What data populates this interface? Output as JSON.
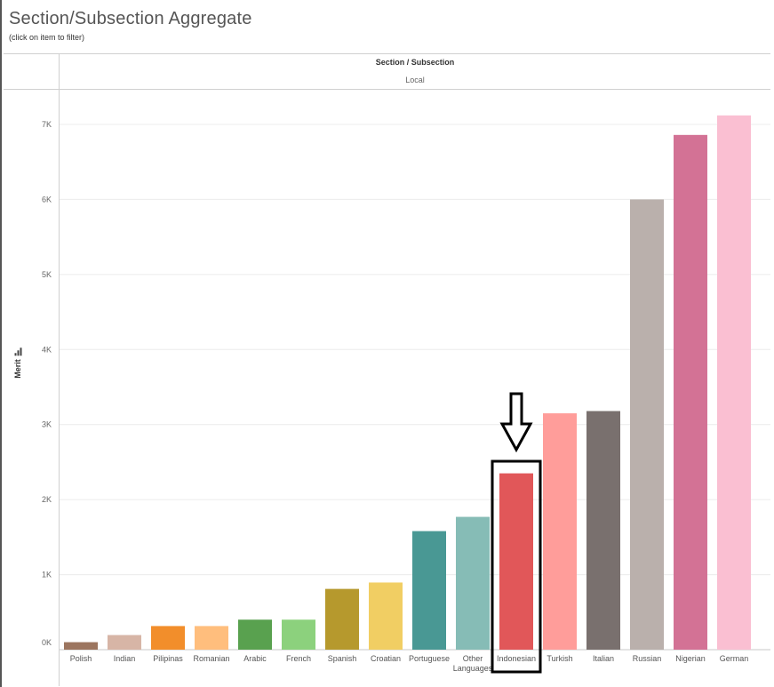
{
  "page": {
    "title": "Section/Subsection Aggregate",
    "subtitle": "(click on item to filter)",
    "header_label": "Section / Subsection",
    "header_value": "Local"
  },
  "chart_data": {
    "type": "bar",
    "title": "Section/Subsection Aggregate",
    "xlabel": "",
    "ylabel": "Merit",
    "ylim": [
      0,
      7500
    ],
    "grid": true,
    "y_ticks": [
      0,
      1000,
      2000,
      3000,
      4000,
      5000,
      6000,
      7000
    ],
    "y_tick_labels": [
      "0K",
      "1K",
      "2K",
      "3K",
      "4K",
      "5K",
      "6K",
      "7K"
    ],
    "categories": [
      "Polish",
      "Indian",
      "Pilipinas",
      "Romanian",
      "Arabic",
      "French",
      "Spanish",
      "Croatian",
      "Portuguese",
      "Other Languages",
      "Indonesian",
      "Turkish",
      "Italian",
      "Russian",
      "Nigerian",
      "German"
    ],
    "values": [
      100,
      195,
      315,
      315,
      400,
      400,
      810,
      895,
      1580,
      1770,
      2350,
      3150,
      3180,
      6000,
      6860,
      7120
    ],
    "colors": [
      "#9c755f",
      "#d7b5a6",
      "#f28e2b",
      "#ffbe7d",
      "#59a14f",
      "#8cd17d",
      "#b6992d",
      "#f1ce63",
      "#499894",
      "#86bcb6",
      "#e15759",
      "#ff9d9a",
      "#79706e",
      "#bab0ac",
      "#d37295",
      "#fabfd2"
    ],
    "highlighted": "Indonesian"
  }
}
